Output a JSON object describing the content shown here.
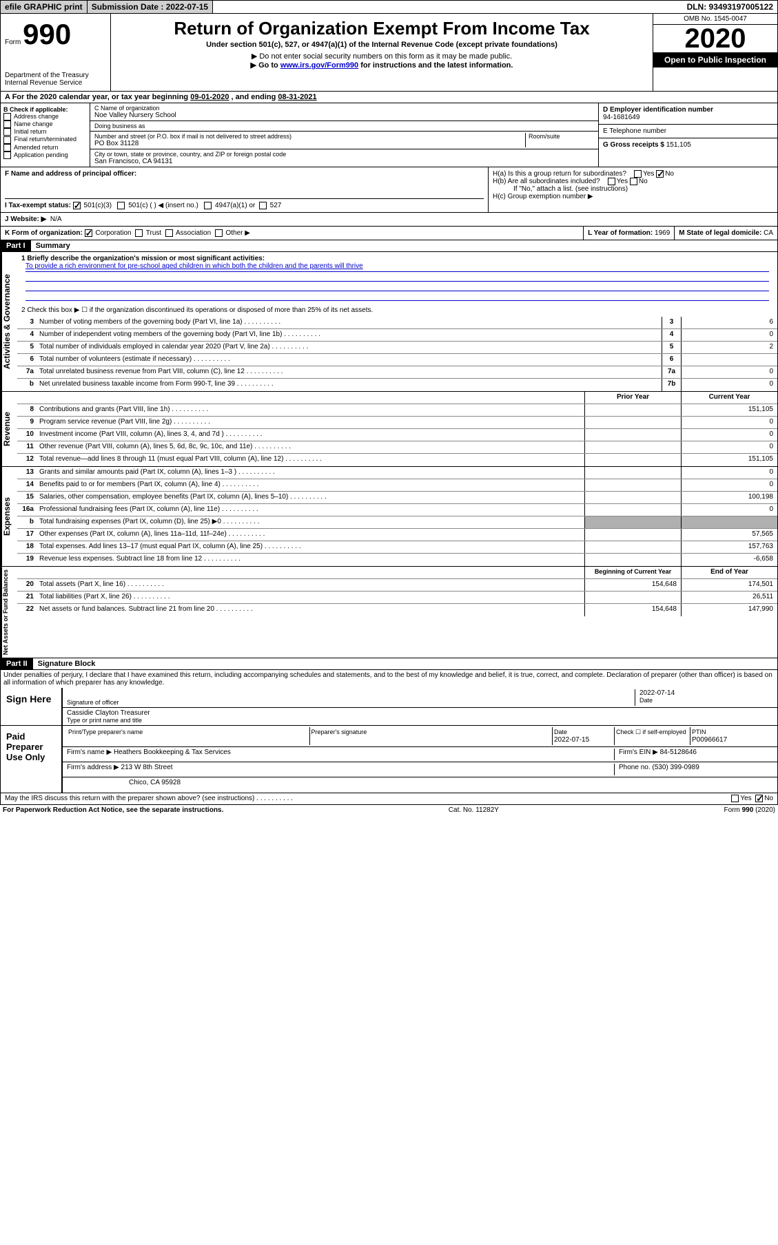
{
  "topbar": {
    "efile": "efile GRAPHIC print",
    "submission_label": "Submission Date : 2022-07-15",
    "dln": "DLN: 93493197005122"
  },
  "header": {
    "form_prefix": "Form",
    "form_number": "990",
    "dept": "Department of the Treasury\nInternal Revenue Service",
    "title": "Return of Organization Exempt From Income Tax",
    "subtitle": "Under section 501(c), 527, or 4947(a)(1) of the Internal Revenue Code (except private foundations)",
    "note1": "Do not enter social security numbers on this form as it may be made public.",
    "note2_prefix": "Go to ",
    "note2_link": "www.irs.gov/Form990",
    "note2_suffix": " for instructions and the latest information.",
    "omb": "OMB No. 1545-0047",
    "year": "2020",
    "inspect": "Open to Public Inspection"
  },
  "period": {
    "label_a": "A For the 2020 calendar year, or tax year beginning ",
    "begin": "09-01-2020",
    "mid": " , and ending ",
    "end": "08-31-2021"
  },
  "box_b": {
    "label": "B Check if applicable:",
    "items": [
      "Address change",
      "Name change",
      "Initial return",
      "Final return/terminated",
      "Amended return",
      "Application pending"
    ]
  },
  "box_c": {
    "name_label": "C Name of organization",
    "name": "Noe Valley Nursery School",
    "dba_label": "Doing business as",
    "dba": "",
    "street_label": "Number and street (or P.O. box if mail is not delivered to street address)",
    "room_label": "Room/suite",
    "street": "PO Box 31128",
    "city_label": "City or town, state or province, country, and ZIP or foreign postal code",
    "city": "San Francisco, CA  94131"
  },
  "box_d": {
    "label": "D Employer identification number",
    "ein": "94-1681649"
  },
  "box_e": {
    "label": "E Telephone number",
    "phone": ""
  },
  "box_g": {
    "label": "G Gross receipts $ ",
    "amount": "151,105"
  },
  "box_f": {
    "label": "F  Name and address of principal officer:",
    "name": ""
  },
  "box_h": {
    "ha_label": "H(a)  Is this a group return for subordinates?",
    "ha_no": "No",
    "hb_label": "H(b)  Are all subordinates included?",
    "hb_note": "If \"No,\" attach a list. (see instructions)",
    "hc_label": "H(c)  Group exemption number ▶"
  },
  "row_i": {
    "label": "I  Tax-exempt status:",
    "opt1": "501(c)(3)",
    "opt2": "501(c) (  ) ◀ (insert no.)",
    "opt3": "4947(a)(1) or",
    "opt4": "527"
  },
  "row_j": {
    "label": "J  Website: ▶",
    "value": "N/A"
  },
  "row_k": {
    "label": "K Form of organization:",
    "corp": "Corporation",
    "trust": "Trust",
    "assoc": "Association",
    "other": "Other ▶"
  },
  "row_l": {
    "label": "L Year of formation: ",
    "value": "1969"
  },
  "row_m": {
    "label": "M State of legal domicile: ",
    "value": "CA"
  },
  "part1": {
    "header": "Part I",
    "title": "Summary",
    "line1_label": "1  Briefly describe the organization's mission or most significant activities:",
    "line1_text": "To provide a rich environment for pre-school aged children in which both the children and the parents will thrive",
    "line2": "2   Check this box ▶ ☐  if the organization discontinued its operations or disposed of more than 25% of its net assets."
  },
  "governance": {
    "label": "Activities & Governance",
    "rows": [
      {
        "n": "3",
        "d": "Number of voting members of the governing body (Part VI, line 1a)",
        "b": "3",
        "v": "6"
      },
      {
        "n": "4",
        "d": "Number of independent voting members of the governing body (Part VI, line 1b)",
        "b": "4",
        "v": "0"
      },
      {
        "n": "5",
        "d": "Total number of individuals employed in calendar year 2020 (Part V, line 2a)",
        "b": "5",
        "v": "2"
      },
      {
        "n": "6",
        "d": "Total number of volunteers (estimate if necessary)",
        "b": "6",
        "v": ""
      },
      {
        "n": "7a",
        "d": "Total unrelated business revenue from Part VIII, column (C), line 12",
        "b": "7a",
        "v": "0"
      },
      {
        "n": "b",
        "d": "Net unrelated business taxable income from Form 990-T, line 39",
        "b": "7b",
        "v": "0"
      }
    ]
  },
  "revenue": {
    "label": "Revenue",
    "head_prior": "Prior Year",
    "head_current": "Current Year",
    "rows": [
      {
        "n": "8",
        "d": "Contributions and grants (Part VIII, line 1h)",
        "p": "",
        "c": "151,105"
      },
      {
        "n": "9",
        "d": "Program service revenue (Part VIII, line 2g)",
        "p": "",
        "c": "0"
      },
      {
        "n": "10",
        "d": "Investment income (Part VIII, column (A), lines 3, 4, and 7d )",
        "p": "",
        "c": "0"
      },
      {
        "n": "11",
        "d": "Other revenue (Part VIII, column (A), lines 5, 6d, 8c, 9c, 10c, and 11e)",
        "p": "",
        "c": "0"
      },
      {
        "n": "12",
        "d": "Total revenue—add lines 8 through 11 (must equal Part VIII, column (A), line 12)",
        "p": "",
        "c": "151,105"
      }
    ]
  },
  "expenses": {
    "label": "Expenses",
    "rows": [
      {
        "n": "13",
        "d": "Grants and similar amounts paid (Part IX, column (A), lines 1–3 )",
        "p": "",
        "c": "0"
      },
      {
        "n": "14",
        "d": "Benefits paid to or for members (Part IX, column (A), line 4)",
        "p": "",
        "c": "0"
      },
      {
        "n": "15",
        "d": "Salaries, other compensation, employee benefits (Part IX, column (A), lines 5–10)",
        "p": "",
        "c": "100,198"
      },
      {
        "n": "16a",
        "d": "Professional fundraising fees (Part IX, column (A), line 11e)",
        "p": "",
        "c": "0"
      },
      {
        "n": "b",
        "d": "Total fundraising expenses (Part IX, column (D), line 25) ▶0",
        "p": "shaded",
        "c": "shaded"
      },
      {
        "n": "17",
        "d": "Other expenses (Part IX, column (A), lines 11a–11d, 11f–24e)",
        "p": "",
        "c": "57,565"
      },
      {
        "n": "18",
        "d": "Total expenses. Add lines 13–17 (must equal Part IX, column (A), line 25)",
        "p": "",
        "c": "157,763"
      },
      {
        "n": "19",
        "d": "Revenue less expenses. Subtract line 18 from line 12",
        "p": "",
        "c": "-6,658"
      }
    ]
  },
  "netassets": {
    "label": "Net Assets or Fund Balances",
    "head_begin": "Beginning of Current Year",
    "head_end": "End of Year",
    "rows": [
      {
        "n": "20",
        "d": "Total assets (Part X, line 16)",
        "p": "154,648",
        "c": "174,501"
      },
      {
        "n": "21",
        "d": "Total liabilities (Part X, line 26)",
        "p": "",
        "c": "26,511"
      },
      {
        "n": "22",
        "d": "Net assets or fund balances. Subtract line 21 from line 20",
        "p": "154,648",
        "c": "147,990"
      }
    ]
  },
  "part2": {
    "header": "Part II",
    "title": "Signature Block",
    "declaration": "Under penalties of perjury, I declare that I have examined this return, including accompanying schedules and statements, and to the best of my knowledge and belief, it is true, correct, and complete. Declaration of preparer (other than officer) is based on all information of which preparer has any knowledge."
  },
  "sign": {
    "left": "Sign Here",
    "sig_label": "Signature of officer",
    "date_label": "Date",
    "date": "2022-07-14",
    "name": "Cassidie Clayton Treasurer",
    "name_label": "Type or print name and title"
  },
  "preparer": {
    "left": "Paid Preparer Use Only",
    "h1": "Print/Type preparer's name",
    "h2": "Preparer's signature",
    "h3": "Date",
    "h3v": "2022-07-15",
    "h4": "Check ☐ if self-employed",
    "h5": "PTIN",
    "ptin": "P00966617",
    "firm_label": "Firm's name    ▶",
    "firm_name": "Heathers Bookkeeping & Tax Services",
    "ein_label": "Firm's EIN ▶",
    "ein": "84-5128646",
    "addr_label": "Firm's address ▶",
    "addr": "213 W 8th Street",
    "addr2": "Chico, CA  95928",
    "phone_label": "Phone no. ",
    "phone": "(530) 399-0989"
  },
  "discuss": {
    "label": "May the IRS discuss this return with the preparer shown above? (see instructions)",
    "no": "No"
  },
  "footer": {
    "left": "For Paperwork Reduction Act Notice, see the separate instructions.",
    "mid": "Cat. No. 11282Y",
    "right": "Form 990 (2020)"
  }
}
